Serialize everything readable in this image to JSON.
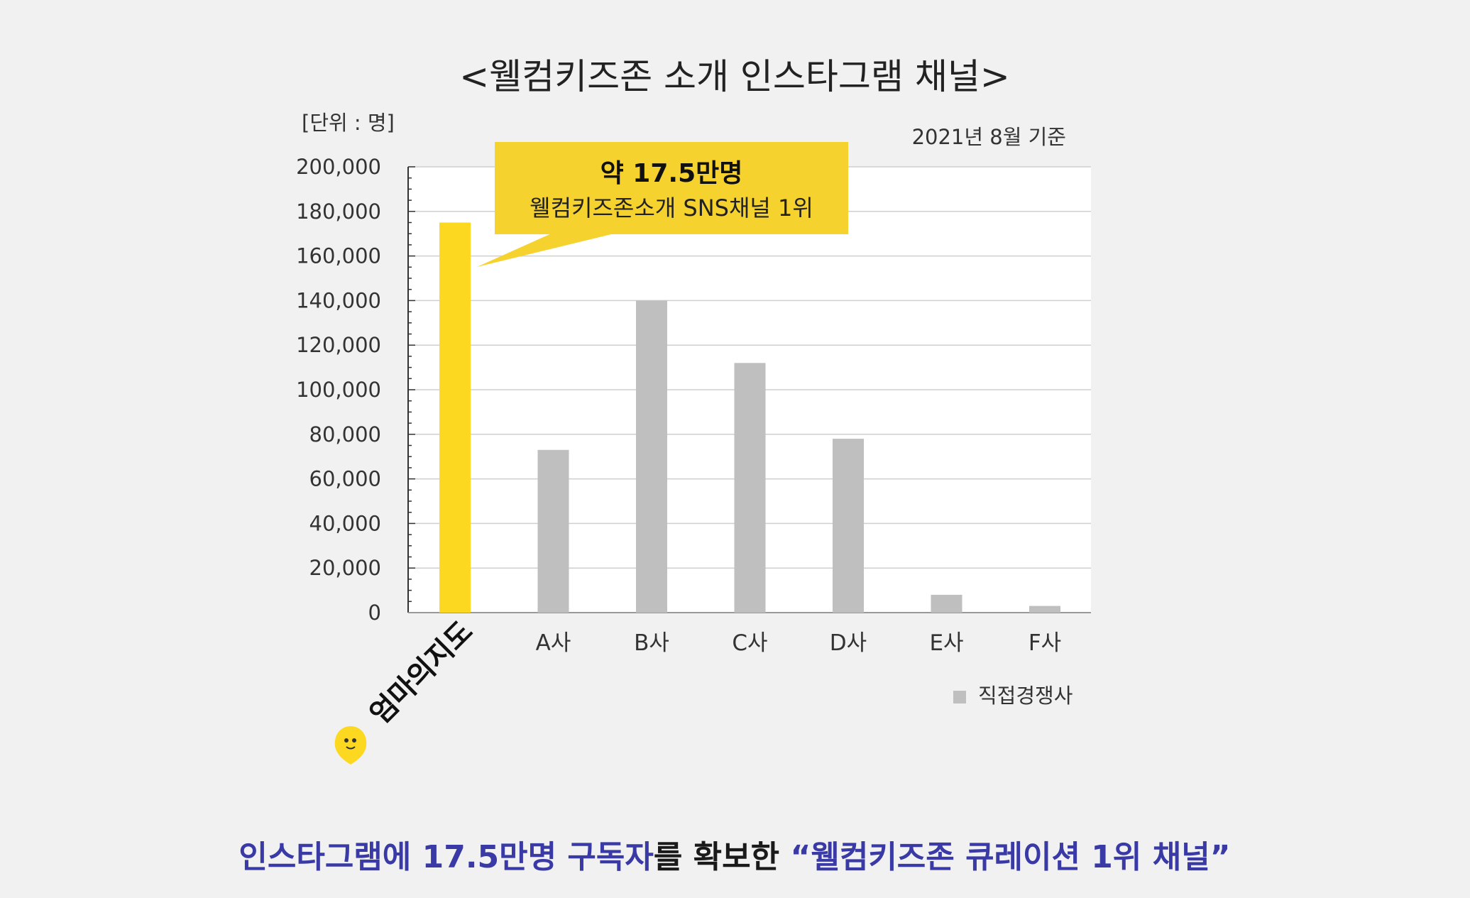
{
  "title": "<웰컴키즈존 소개 인스타그램 채널>",
  "unit_label": "[단위 : 명]",
  "date_label": "2021년 8월 기준",
  "callout": {
    "main": "약 17.5만명",
    "sub": "웰컴키즈존소개 SNS채널 1위"
  },
  "brand_label": "엄마의지도",
  "legend_label": "직접경쟁사",
  "footer": {
    "part1": "인스타그램에 17.5만명 구독자",
    "part2": "를 확보한 ",
    "part3": "“웰컴키즈존  큐레이션 1위 채널”"
  },
  "colors": {
    "highlight": "#fcd820",
    "competitor": "#bfbfbf",
    "callout_bg": "#f5d22e",
    "footer_text": "#3a3aa6"
  },
  "chart_data": {
    "type": "bar",
    "categories": [
      "엄마의지도",
      "A사",
      "B사",
      "C사",
      "D사",
      "E사",
      "F사"
    ],
    "values": [
      175000,
      73000,
      140000,
      112000,
      78000,
      8000,
      3000
    ],
    "highlight_index": 0,
    "ylim": [
      0,
      200000
    ],
    "yticks": [
      0,
      20000,
      40000,
      60000,
      80000,
      100000,
      120000,
      140000,
      160000,
      180000,
      200000
    ],
    "ytick_labels": [
      "0",
      "20,000",
      "40,000",
      "60,000",
      "80,000",
      "100,000",
      "120,000",
      "140,000",
      "160,000",
      "180,000",
      "200,000"
    ],
    "grid": true,
    "legend_position": "bottom-right"
  }
}
